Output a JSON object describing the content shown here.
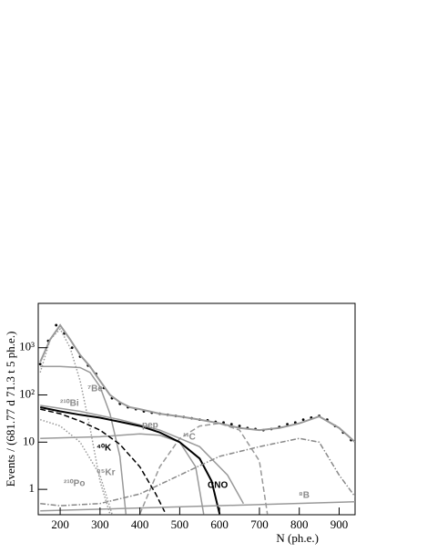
{
  "chart_data": {
    "type": "line",
    "x_label": "N (ph.e.)",
    "y_label": "Events / (681.77 d  71.3 t  5 ph.e.)",
    "log_y": true,
    "xlim": [
      145,
      940
    ],
    "ylim": [
      0.29,
      8700
    ],
    "xticks": [
      200,
      300,
      400,
      500,
      600,
      700,
      800,
      900
    ],
    "yticks": [
      1,
      10,
      {
        "value": 100,
        "label": "10²"
      },
      {
        "value": 1000,
        "label": "10³"
      }
    ],
    "series": [
      {
        "color": "#000000",
        "style": "points",
        "x": [
          150,
          170,
          190,
          210,
          230,
          250,
          270,
          290,
          310,
          330,
          350,
          370,
          390,
          410,
          430,
          450,
          470,
          490,
          510,
          530,
          550,
          570,
          590,
          610,
          630,
          650,
          670,
          690,
          710,
          730,
          750,
          770,
          790,
          810,
          830,
          850,
          870,
          890,
          910,
          930
        ],
        "values": [
          450,
          1400,
          3000,
          2000,
          1000,
          650,
          420,
          280,
          140,
          85,
          65,
          55,
          50,
          45,
          42,
          40,
          38,
          36,
          34,
          32,
          30,
          29,
          27,
          26,
          24,
          22,
          20,
          19,
          18,
          19,
          21,
          24,
          26,
          30,
          33,
          36,
          30,
          22,
          16,
          11
        ]
      },
      {
        "color": "#999999",
        "style": "solid-thick",
        "x": [
          150,
          175,
          200,
          225,
          250,
          275,
          300,
          325,
          350,
          375,
          400,
          450,
          500,
          550,
          600,
          650,
          700,
          750,
          800,
          850,
          900,
          940
        ],
        "values": [
          500,
          1500,
          3000,
          1500,
          700,
          400,
          200,
          100,
          70,
          55,
          50,
          40,
          35,
          30,
          25,
          20,
          18,
          20,
          25,
          35,
          20,
          10
        ]
      },
      {
        "name": "²¹⁰Po",
        "color": "#999999",
        "style": "dotted",
        "x": [
          150,
          175,
          200,
          225,
          250,
          275,
          300,
          325
        ],
        "values": [
          300,
          1500,
          2500,
          1000,
          200,
          20,
          1.5,
          0.3
        ]
      },
      {
        "name": "⁷Be",
        "color": "#999999",
        "style": "solid",
        "x": [
          150,
          200,
          250,
          275,
          300,
          325,
          350,
          365
        ],
        "values": [
          400,
          400,
          380,
          300,
          150,
          40,
          5,
          0.3
        ]
      },
      {
        "name": "²¹⁰Bi",
        "color": "#999999",
        "style": "solid",
        "x": [
          150,
          250,
          350,
          450,
          550,
          620,
          660
        ],
        "values": [
          60,
          45,
          30,
          18,
          8,
          2,
          0.5
        ]
      },
      {
        "name": "pep",
        "color": "#999999",
        "style": "solid",
        "x": [
          150,
          300,
          400,
          450,
          500,
          540,
          560
        ],
        "values": [
          12,
          13,
          15,
          14,
          10,
          3,
          0.3
        ]
      },
      {
        "name": "¹¹C",
        "color": "#999999",
        "style": "dashed",
        "x": [
          400,
          450,
          500,
          550,
          600,
          650,
          700,
          720
        ],
        "values": [
          0.3,
          3,
          12,
          22,
          25,
          18,
          4,
          0.3
        ]
      },
      {
        "name": "⁴⁰K",
        "color": "#000000",
        "style": "dashed",
        "x": [
          150,
          200,
          250,
          300,
          350,
          400,
          440,
          465
        ],
        "values": [
          50,
          40,
          28,
          18,
          9,
          3,
          0.8,
          0.3
        ]
      },
      {
        "name": "⁸⁵Kr",
        "color": "#999999",
        "style": "dotted",
        "x": [
          150,
          200,
          250,
          300,
          330
        ],
        "values": [
          30,
          22,
          10,
          2,
          0.3
        ]
      },
      {
        "name": "CNO",
        "color": "#000000",
        "style": "solid-thick",
        "x": [
          150,
          200,
          250,
          300,
          350,
          400,
          450,
          500,
          550,
          580,
          600
        ],
        "values": [
          55,
          45,
          38,
          33,
          27,
          22,
          16,
          10,
          4.5,
          1.5,
          0.3
        ]
      },
      {
        "name": "⁸B",
        "color": "#999999",
        "style": "solid",
        "x": [
          150,
          950
        ],
        "values": [
          0.35,
          0.55
        ]
      },
      {
        "color": "#888888",
        "style": "dashdot",
        "x": [
          150,
          200,
          300,
          400,
          500,
          600,
          700,
          800,
          850,
          900,
          940
        ],
        "values": [
          0.5,
          0.45,
          0.5,
          0.8,
          2,
          5,
          8,
          12,
          10,
          2,
          0.7
        ]
      }
    ]
  }
}
